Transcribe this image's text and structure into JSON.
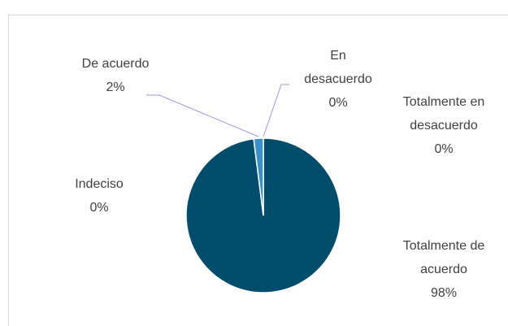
{
  "chart_data": {
    "type": "pie",
    "categories": [
      "En desacuerdo",
      "Totalmente en desacuerdo",
      "Indeciso",
      "Totalmente de acuerdo",
      "De acuerdo"
    ],
    "values": [
      0,
      0,
      0,
      98,
      2
    ],
    "value_labels": [
      "0%",
      "0%",
      "0%",
      "98%",
      "2%"
    ],
    "colors": [
      "#7aa6c8",
      "#2a6f97",
      "#9bbcd6",
      "#004c6d",
      "#3a8fc9"
    ]
  }
}
